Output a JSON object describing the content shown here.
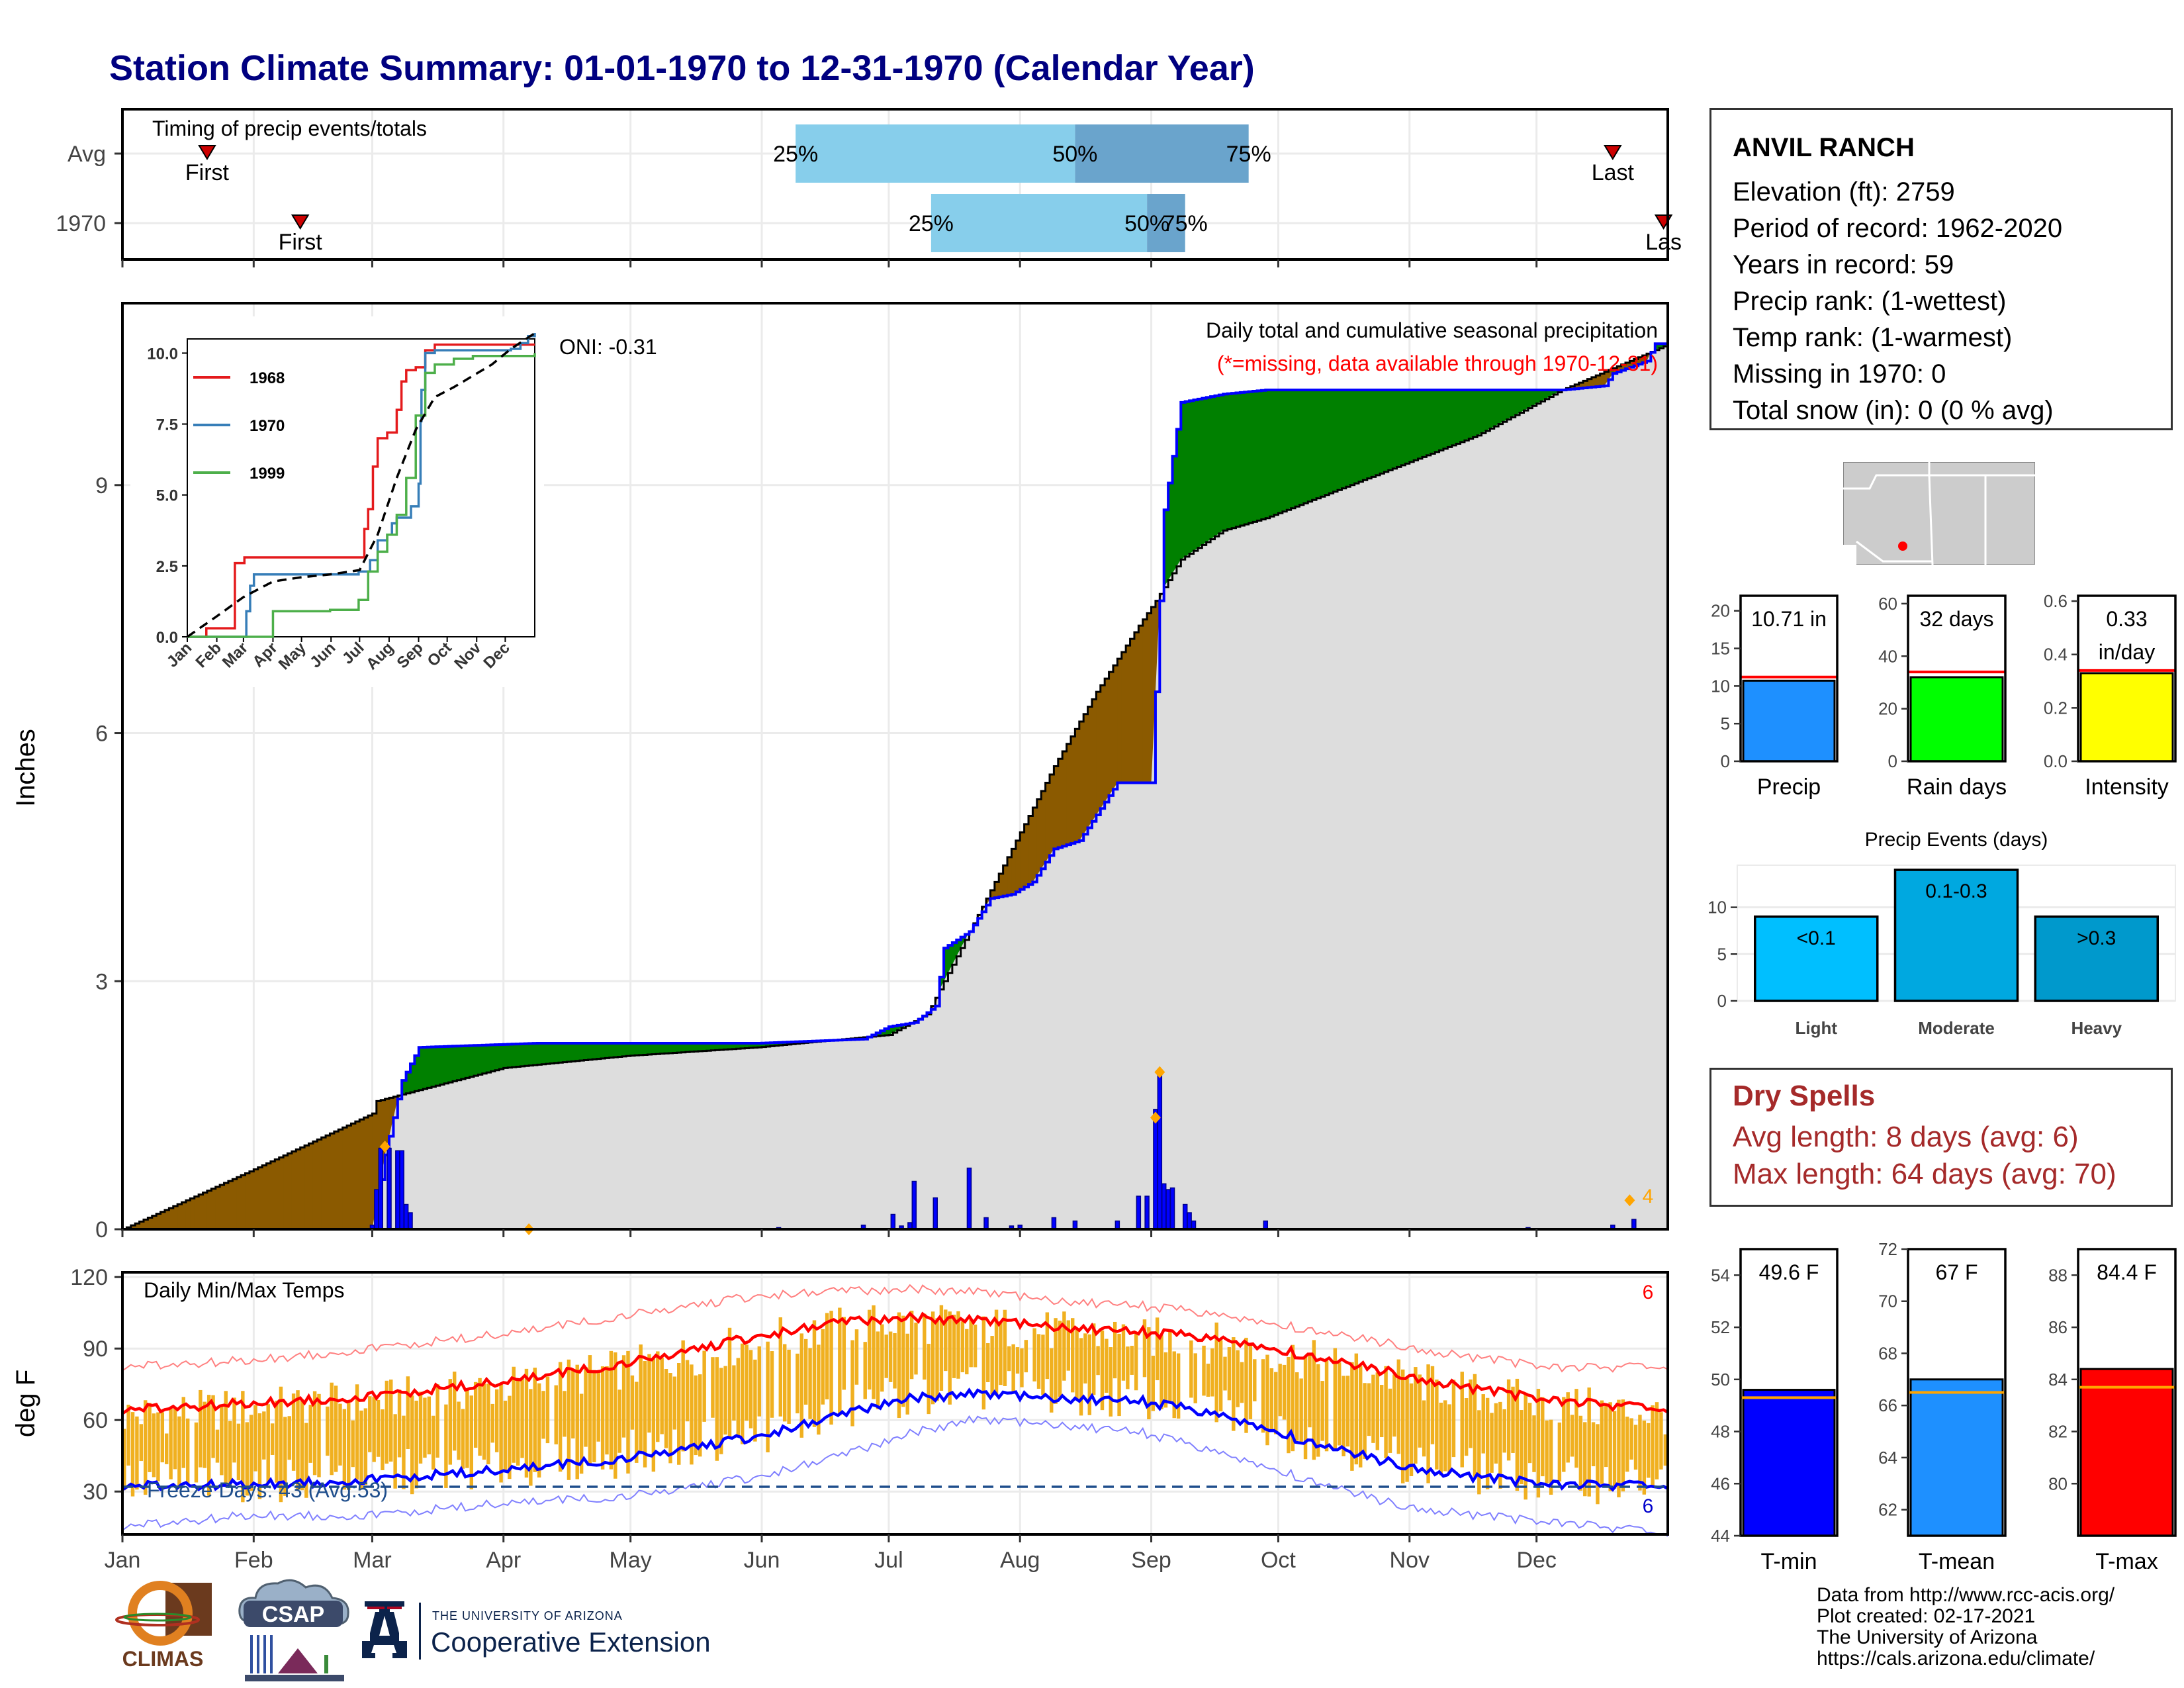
{
  "title": "Station Climate Summary: 01-01-1970 to 12-31-1970 (Calendar Year)",
  "colors": {
    "title": "#000080",
    "dry": "#a52a2a",
    "missing_note": "#ff0000",
    "above_avg": "#008000",
    "below_avg": "#8b5a00",
    "avg_fill": "#dddddd",
    "year_line": "#0000ff",
    "temp_bar": "#f0b020",
    "tmax": "#ff0000",
    "tmin": "#0000ff",
    "quartile_light": "#87ceeb",
    "quartile_dark": "#6aa4cc"
  },
  "timing": {
    "label": "Timing of precip events/totals",
    "rows": [
      {
        "name": "Avg",
        "first_day": 20,
        "p25": 159,
        "p50": 225,
        "p75": 266,
        "last_day": 352,
        "first_label": "First",
        "last_label": "Last"
      },
      {
        "name": "1970",
        "first_day": 42,
        "p25": 191,
        "p50": 242,
        "p75": 251,
        "last_day": 364,
        "first_label": "First",
        "last_label": "Las"
      }
    ],
    "pct_labels": [
      "25%",
      "50%",
      "75%"
    ]
  },
  "months": [
    "Jan",
    "Feb",
    "Mar",
    "Apr",
    "May",
    "Jun",
    "Jul",
    "Aug",
    "Sep",
    "Oct",
    "Nov",
    "Dec"
  ],
  "precip_panel": {
    "ylabel": "Inches",
    "annotation_title": "Daily total and cumulative seasonal precipitation",
    "annotation_missing": "(*=missing, data available through 1970-12-31)",
    "oni": "ONI: -0.31",
    "count_label": "4"
  },
  "chart_data": [
    {
      "type": "area",
      "name": "cumulative-precip",
      "ylim": [
        0,
        11.2
      ],
      "yticks": [
        "0",
        "3",
        "6",
        "9"
      ],
      "ytick_values": [
        0,
        3,
        6,
        9
      ],
      "avg_cumulative": {
        "day": [
          0,
          30,
          59,
          60,
          90,
          120,
          150,
          160,
          181,
          190,
          200,
          210,
          220,
          230,
          240,
          244,
          250,
          260,
          270,
          280,
          300,
          320,
          340,
          365
        ],
        "inches": [
          0,
          0.7,
          1.4,
          1.55,
          1.95,
          2.1,
          2.2,
          2.25,
          2.35,
          2.6,
          3.6,
          4.6,
          5.6,
          6.5,
          7.3,
          7.6,
          8.1,
          8.45,
          8.6,
          8.8,
          9.2,
          9.6,
          10.15,
          10.7
        ]
      },
      "year_cumulative": {
        "day": [
          0,
          40,
          59,
          62,
          66,
          70,
          98,
          122,
          150,
          175,
          181,
          187,
          192,
          194,
          200,
          205,
          210,
          215,
          220,
          226,
          235,
          243,
          245,
          246,
          250,
          260,
          270,
          280,
          300,
          320,
          340,
          350,
          352,
          360,
          362,
          365
        ],
        "inches": [
          0,
          0,
          0,
          0.9,
          1.8,
          2.2,
          2.25,
          2.25,
          2.25,
          2.3,
          2.45,
          2.5,
          2.7,
          3.4,
          3.6,
          4.0,
          4.05,
          4.2,
          4.6,
          4.7,
          5.4,
          5.4,
          7.6,
          8.7,
          10.0,
          10.1,
          10.15,
          10.15,
          10.15,
          10.15,
          10.15,
          10.2,
          10.35,
          10.5,
          10.71,
          10.71
        ]
      },
      "daily_precip": {
        "day": [
          59,
          60,
          61,
          63,
          65,
          66,
          67,
          68,
          155,
          175,
          182,
          184,
          186,
          187,
          192,
          200,
          204,
          210,
          212,
          220,
          225,
          235,
          240,
          242,
          244,
          245,
          246,
          247,
          248,
          251,
          252,
          253,
          270,
          332,
          352,
          357
        ],
        "inches": [
          0.05,
          0.48,
          0.98,
          0.98,
          0.95,
          0.95,
          0.3,
          0.2,
          0.02,
          0.05,
          0.18,
          0.04,
          0.08,
          0.58,
          0.38,
          0.74,
          0.14,
          0.04,
          0.05,
          0.14,
          0.1,
          0.1,
          0.4,
          0.4,
          1.45,
          1.9,
          0.55,
          0.48,
          0.5,
          0.3,
          0.2,
          0.1,
          0.1,
          0.02,
          0.05,
          0.12
        ]
      },
      "daily_max_markers": {
        "day": [
          62,
          96,
          244,
          245,
          356
        ],
        "inches": [
          1.0,
          0.0,
          1.35,
          1.9,
          0.35
        ]
      }
    },
    {
      "type": "line",
      "name": "inset-cumulative",
      "ylim": [
        0,
        10.5
      ],
      "yticks": [
        "0.0",
        "2.5",
        "5.0",
        "7.5",
        "10.0"
      ],
      "ytick_values": [
        0,
        2.5,
        5,
        7.5,
        10
      ],
      "series": [
        {
          "name": "1968",
          "color": "#e41a1c",
          "day": [
            0,
            20,
            50,
            60,
            90,
            180,
            186,
            190,
            195,
            200,
            210,
            220,
            225,
            230,
            240,
            250,
            260,
            280,
            365
          ],
          "inches": [
            0,
            0.3,
            2.6,
            2.8,
            2.8,
            2.8,
            3.8,
            4.5,
            6.0,
            7.0,
            7.2,
            8.0,
            9.0,
            9.4,
            9.5,
            10.1,
            10.3,
            10.3,
            10.3
          ]
        },
        {
          "name": "1970",
          "color": "#377eb8",
          "day": [
            0,
            40,
            59,
            62,
            66,
            70,
            180,
            192,
            200,
            210,
            215,
            220,
            235,
            243,
            245,
            246,
            250,
            260,
            340,
            350,
            358,
            365
          ],
          "inches": [
            0,
            0,
            0,
            0.9,
            1.8,
            2.2,
            2.3,
            2.7,
            3.4,
            3.6,
            4.0,
            4.2,
            4.6,
            5.4,
            7.6,
            8.7,
            10.0,
            10.1,
            10.15,
            10.35,
            10.6,
            10.71
          ]
        },
        {
          "name": "1999",
          "color": "#4daf4a",
          "day": [
            0,
            80,
            90,
            150,
            180,
            190,
            200,
            210,
            220,
            230,
            240,
            250,
            260,
            280,
            300,
            365
          ],
          "inches": [
            0,
            0,
            0.9,
            0.95,
            1.3,
            2.3,
            3.0,
            3.6,
            4.3,
            5.6,
            7.8,
            9.3,
            9.6,
            9.8,
            9.9,
            10.0
          ]
        },
        {
          "name": "",
          "color": "#000000",
          "dashed": true,
          "day": [
            0,
            30,
            59,
            90,
            120,
            150,
            181,
            200,
            220,
            240,
            260,
            280,
            300,
            320,
            340,
            365
          ],
          "inches": [
            0,
            0.7,
            1.4,
            1.95,
            2.1,
            2.2,
            2.35,
            3.6,
            5.6,
            7.3,
            8.45,
            8.8,
            9.2,
            9.6,
            10.15,
            10.7
          ]
        }
      ]
    },
    {
      "type": "line",
      "name": "daily-temps",
      "title": "Daily Min/Max Temps",
      "ylabel": "deg F",
      "ylim": [
        12,
        122
      ],
      "yticks": [
        "30",
        "60",
        "90",
        "120"
      ],
      "ytick_values": [
        30,
        60,
        90,
        120
      ],
      "normal_tmax": {
        "day": [
          0,
          30,
          59,
          90,
          120,
          150,
          170,
          181,
          200,
          220,
          240,
          260,
          280,
          300,
          320,
          340,
          365
        ],
        "temp": [
          64,
          67,
          70,
          76,
          84,
          95,
          101,
          103,
          102,
          99,
          97,
          94,
          87,
          80,
          73,
          68,
          64
        ]
      },
      "normal_tmin": {
        "day": [
          0,
          30,
          59,
          90,
          120,
          150,
          170,
          181,
          200,
          220,
          240,
          260,
          280,
          300,
          320,
          340,
          365
        ],
        "temp": [
          32,
          33,
          35,
          39,
          44,
          53,
          62,
          68,
          71,
          69,
          68,
          62,
          51,
          42,
          36,
          33,
          32
        ]
      },
      "record_tmax": {
        "day": [
          0,
          30,
          59,
          90,
          120,
          150,
          170,
          181,
          200,
          220,
          240,
          260,
          280,
          300,
          320,
          340,
          365
        ],
        "temp": [
          82,
          85,
          90,
          96,
          104,
          112,
          114,
          115,
          114,
          110,
          108,
          104,
          98,
          92,
          86,
          82,
          82
        ]
      },
      "record_tmin": {
        "day": [
          0,
          30,
          59,
          90,
          120,
          150,
          170,
          181,
          200,
          220,
          240,
          260,
          280,
          300,
          320,
          340,
          365
        ],
        "temp": [
          15,
          20,
          20,
          25,
          28,
          36,
          45,
          52,
          60,
          58,
          55,
          46,
          35,
          25,
          20,
          17,
          12
        ]
      },
      "freeze_line": 32,
      "freeze_label": "Freeze Days: 43 (Avg:53)",
      "hot_count": "6",
      "cold_count": "6"
    },
    {
      "type": "bar",
      "name": "precip-total",
      "categories": [
        "Precip"
      ],
      "values": [
        10.71
      ],
      "avg": 11.2,
      "value_label": "10.71 in",
      "ylim": [
        0,
        22
      ],
      "yticks": [
        "0",
        "5",
        "10",
        "15",
        "20"
      ],
      "ytick_values": [
        0,
        5,
        10,
        15,
        20
      ],
      "color": "#1e90ff"
    },
    {
      "type": "bar",
      "name": "rain-days",
      "categories": [
        "Rain days"
      ],
      "values": [
        32
      ],
      "avg": 34,
      "value_label": "32 days",
      "ylim": [
        0,
        63
      ],
      "yticks": [
        "0",
        "20",
        "40",
        "60"
      ],
      "ytick_values": [
        0,
        20,
        40,
        60
      ],
      "color": "#00ff00"
    },
    {
      "type": "bar",
      "name": "intensity",
      "categories": [
        "Intensity"
      ],
      "values": [
        0.33
      ],
      "avg": 0.34,
      "value_label": "0.33",
      "value_unit": "in/day",
      "ylim": [
        0,
        0.62
      ],
      "yticks": [
        "0.0",
        "0.2",
        "0.4",
        "0.6"
      ],
      "ytick_values": [
        0,
        0.2,
        0.4,
        0.6
      ],
      "color": "#ffff00"
    },
    {
      "type": "bar",
      "name": "precip-events",
      "title": "Precip Events (days)",
      "categories": [
        "Light",
        "Moderate",
        "Heavy"
      ],
      "values": [
        9,
        14,
        9
      ],
      "bar_labels": [
        "<0.1",
        "0.1-0.3",
        ">0.3"
      ],
      "colors": [
        "#00bfff",
        "#00a8e0",
        "#0099cc"
      ],
      "ylim": [
        0,
        14.5
      ],
      "yticks": [
        "0",
        "5",
        "10"
      ],
      "ytick_values": [
        0,
        5,
        10
      ]
    },
    {
      "type": "bar",
      "name": "t-min",
      "categories": [
        "T-min"
      ],
      "values": [
        49.6
      ],
      "avg": 49.3,
      "value_label": "49.6 F",
      "ylim": [
        44,
        55
      ],
      "yticks": [
        "44",
        "46",
        "48",
        "50",
        "52",
        "54"
      ],
      "ytick_values": [
        44,
        46,
        48,
        50,
        52,
        54
      ],
      "color": "#0000ff"
    },
    {
      "type": "bar",
      "name": "t-mean",
      "categories": [
        "T-mean"
      ],
      "values": [
        67
      ],
      "avg": 66.5,
      "value_label": "67 F",
      "ylim": [
        61,
        72
      ],
      "yticks": [
        "62",
        "64",
        "66",
        "68",
        "70",
        "72"
      ],
      "ytick_values": [
        62,
        64,
        66,
        68,
        70,
        72
      ],
      "color": "#1e90ff"
    },
    {
      "type": "bar",
      "name": "t-max",
      "categories": [
        "T-max"
      ],
      "values": [
        84.4
      ],
      "avg": 83.7,
      "value_label": "84.4 F",
      "ylim": [
        78,
        89
      ],
      "yticks": [
        "80",
        "82",
        "84",
        "86",
        "88"
      ],
      "ytick_values": [
        80,
        82,
        84,
        86,
        88
      ],
      "color": "#ff0000"
    }
  ],
  "station": {
    "name": "ANVIL RANCH",
    "lines": [
      "Elevation (ft): 2759",
      "Period of record: 1962-2020",
      "Years in record: 59",
      "Precip rank:  (1-wettest)",
      "Temp rank:  (1-warmest)",
      "Missing in 1970: 0",
      "Total snow (in): 0 (0 % avg)"
    ]
  },
  "dry_spells": {
    "title": "Dry Spells",
    "avg_line": "Avg length: 8 days (avg: 6)",
    "max_line": "Max length: 64 days (avg: 70)"
  },
  "credits": [
    "Data from http://www.rcc-acis.org/",
    "Plot created: 02-17-2021",
    "The University of Arizona",
    "https://cals.arizona.edu/climate/"
  ],
  "logos": {
    "climas": "CLIMAS",
    "csap": "CSAP",
    "ua_small": "THE UNIVERSITY OF ARIZONA",
    "ua_big": "Cooperative Extension"
  }
}
